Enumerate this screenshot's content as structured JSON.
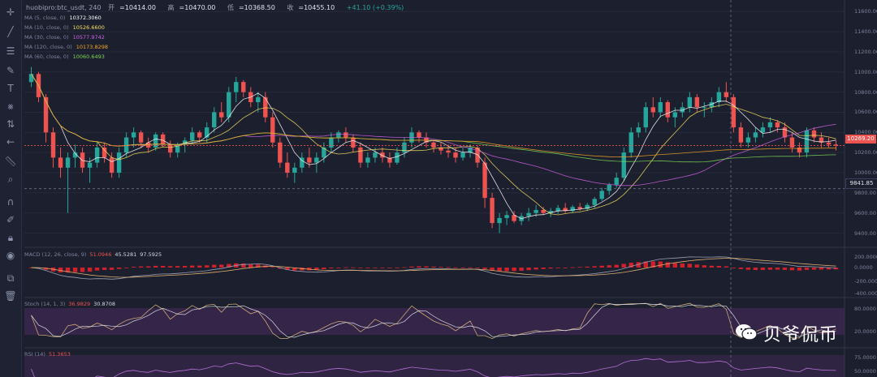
{
  "header": {
    "symbol": "huobipro:btc_usdt, 240",
    "open_label": "开",
    "open": "=10414.00",
    "high_label": "高",
    "high": "=10470.00",
    "low_label": "低",
    "low": "=10368.50",
    "close_label": "收",
    "close": "=10455.10",
    "change": "+41.10 (+0.39%)"
  },
  "indicators": [
    {
      "label": "MA (5, close, 0)",
      "value": "10372.3060",
      "color": "#ffffff"
    },
    {
      "label": "MA (10, close, 0)",
      "value": "10526.6600",
      "color": "#f6e05e"
    },
    {
      "label": "MA (30, close, 0)",
      "value": "10577.9742",
      "color": "#d163e6"
    },
    {
      "label": "MA (120, close, 0)",
      "value": "10173.8298",
      "color": "#f5a623"
    },
    {
      "label": "MA (60, close, 0)",
      "value": "10060.6493",
      "color": "#7ed957"
    }
  ],
  "price_axis": [
    "11600.00",
    "11400.00",
    "11200.00",
    "11000.00",
    "10800.00",
    "10600.00",
    "10400.00",
    "10200.00",
    "10000.00",
    "9800.00",
    "9600.00",
    "9400.00"
  ],
  "current_price": "10269.20",
  "crosshair_price": "9841.85",
  "macd": {
    "label": "MACD (12, 26, close, 9)",
    "v1": "51.0946",
    "v2": "45.5281",
    "v3": "97.5925",
    "axis": [
      "200.0000",
      "0.0000",
      "-200.0000",
      "-400.0000"
    ]
  },
  "stoch": {
    "label": "Stoch (14, 1, 3)",
    "v1": "36.9829",
    "v2": "30.8708",
    "axis": [
      "80.0000",
      "20.0000"
    ]
  },
  "rsi": {
    "label": "RSI (14)",
    "v1": "51.3653",
    "axis": [
      "75.0000",
      "50.0000"
    ]
  },
  "watermark": "贝爷侃币",
  "colors": {
    "up": "#26a69a",
    "down": "#ef5350",
    "bg": "#1c1f2e"
  },
  "chart_data": {
    "type": "candlestick",
    "title": "huobipro:btc_usdt, 240",
    "ylim": [
      9300,
      11650
    ],
    "candles": [
      [
        10900,
        11050,
        10850,
        10980
      ],
      [
        10980,
        11000,
        10700,
        10750
      ],
      [
        10750,
        10780,
        10300,
        10400
      ],
      [
        10400,
        10450,
        10050,
        10150
      ],
      [
        10150,
        10250,
        9950,
        10050
      ],
      [
        10050,
        10200,
        9600,
        10150
      ],
      [
        10150,
        10280,
        10050,
        10200
      ],
      [
        10200,
        10250,
        10000,
        10050
      ],
      [
        10050,
        10150,
        9900,
        10100
      ],
      [
        10100,
        10300,
        10050,
        10250
      ],
      [
        10250,
        10300,
        10100,
        10150
      ],
      [
        10150,
        10200,
        9950,
        10000
      ],
      [
        10000,
        10250,
        9950,
        10200
      ],
      [
        10200,
        10400,
        10150,
        10350
      ],
      [
        10350,
        10450,
        10250,
        10400
      ],
      [
        10400,
        10420,
        10250,
        10300
      ],
      [
        10300,
        10350,
        10200,
        10250
      ],
      [
        10250,
        10400,
        10220,
        10380
      ],
      [
        10380,
        10400,
        10250,
        10280
      ],
      [
        10280,
        10320,
        10150,
        10200
      ],
      [
        10200,
        10300,
        10150,
        10280
      ],
      [
        10280,
        10350,
        10200,
        10320
      ],
      [
        10320,
        10450,
        10280,
        10400
      ],
      [
        10400,
        10420,
        10300,
        10350
      ],
      [
        10350,
        10500,
        10300,
        10450
      ],
      [
        10450,
        10650,
        10400,
        10600
      ],
      [
        10600,
        10700,
        10500,
        10550
      ],
      [
        10550,
        10850,
        10500,
        10800
      ],
      [
        10800,
        10950,
        10700,
        10900
      ],
      [
        10900,
        10920,
        10750,
        10800
      ],
      [
        10800,
        10850,
        10650,
        10700
      ],
      [
        10700,
        10800,
        10600,
        10750
      ],
      [
        10750,
        10800,
        10500,
        10550
      ],
      [
        10550,
        10600,
        10250,
        10300
      ],
      [
        10300,
        10350,
        10050,
        10100
      ],
      [
        10100,
        10200,
        9950,
        10000
      ],
      [
        10000,
        10100,
        9900,
        10050
      ],
      [
        10050,
        10200,
        10000,
        10150
      ],
      [
        10150,
        10250,
        10050,
        10100
      ],
      [
        10100,
        10200,
        10000,
        10150
      ],
      [
        10150,
        10300,
        10100,
        10250
      ],
      [
        10250,
        10400,
        10200,
        10350
      ],
      [
        10350,
        10420,
        10300,
        10400
      ],
      [
        10400,
        10450,
        10300,
        10350
      ],
      [
        10350,
        10380,
        10200,
        10250
      ],
      [
        10250,
        10300,
        10050,
        10100
      ],
      [
        10100,
        10200,
        10050,
        10150
      ],
      [
        10150,
        10250,
        10100,
        10200
      ],
      [
        10200,
        10250,
        10100,
        10150
      ],
      [
        10150,
        10200,
        10050,
        10100
      ],
      [
        10100,
        10250,
        10080,
        10200
      ],
      [
        10200,
        10350,
        10150,
        10300
      ],
      [
        10300,
        10450,
        10250,
        10400
      ],
      [
        10400,
        10420,
        10300,
        10350
      ],
      [
        10350,
        10400,
        10250,
        10300
      ],
      [
        10300,
        10320,
        10200,
        10250
      ],
      [
        10250,
        10300,
        10180,
        10220
      ],
      [
        10220,
        10280,
        10150,
        10200
      ],
      [
        10200,
        10250,
        10100,
        10150
      ],
      [
        10150,
        10250,
        10120,
        10200
      ],
      [
        10200,
        10280,
        10150,
        10250
      ],
      [
        10250,
        10270,
        10050,
        10100
      ],
      [
        10100,
        10150,
        9650,
        9750
      ],
      [
        9750,
        9800,
        9450,
        9500
      ],
      [
        9500,
        9600,
        9400,
        9550
      ],
      [
        9550,
        9620,
        9480,
        9580
      ],
      [
        9580,
        9620,
        9500,
        9520
      ],
      [
        9520,
        9600,
        9480,
        9570
      ],
      [
        9570,
        9650,
        9520,
        9600
      ],
      [
        9600,
        9680,
        9560,
        9630
      ],
      [
        9630,
        9660,
        9580,
        9600
      ],
      [
        9600,
        9650,
        9560,
        9620
      ],
      [
        9620,
        9680,
        9590,
        9650
      ],
      [
        9650,
        9700,
        9600,
        9620
      ],
      [
        9620,
        9680,
        9600,
        9660
      ],
      [
        9660,
        9700,
        9620,
        9640
      ],
      [
        9640,
        9700,
        9620,
        9680
      ],
      [
        9680,
        9760,
        9650,
        9740
      ],
      [
        9740,
        9850,
        9720,
        9820
      ],
      [
        9820,
        9900,
        9780,
        9880
      ],
      [
        9880,
        10000,
        9850,
        9950
      ],
      [
        9950,
        10250,
        9920,
        10200
      ],
      [
        10200,
        10450,
        10150,
        10400
      ],
      [
        10400,
        10500,
        10350,
        10450
      ],
      [
        10450,
        10700,
        10400,
        10650
      ],
      [
        10650,
        10750,
        10550,
        10600
      ],
      [
        10600,
        10750,
        10550,
        10700
      ],
      [
        10700,
        10720,
        10500,
        10550
      ],
      [
        10550,
        10650,
        10450,
        10600
      ],
      [
        10600,
        10700,
        10550,
        10650
      ],
      [
        10650,
        10800,
        10600,
        10750
      ],
      [
        10750,
        10780,
        10600,
        10650
      ],
      [
        10650,
        10700,
        10550,
        10650
      ],
      [
        10650,
        10750,
        10600,
        10700
      ],
      [
        10700,
        10850,
        10650,
        10800
      ],
      [
        10800,
        10900,
        10700,
        10750
      ],
      [
        10750,
        10780,
        10400,
        10450
      ],
      [
        10450,
        10500,
        10250,
        10300
      ],
      [
        10300,
        10400,
        10250,
        10350
      ],
      [
        10350,
        10450,
        10300,
        10400
      ],
      [
        10400,
        10500,
        10350,
        10450
      ],
      [
        10450,
        10550,
        10400,
        10500
      ],
      [
        10500,
        10520,
        10400,
        10450
      ],
      [
        10450,
        10500,
        10300,
        10350
      ],
      [
        10350,
        10400,
        10200,
        10250
      ],
      [
        10250,
        10300,
        10150,
        10200
      ],
      [
        10200,
        10450,
        10150,
        10420
      ],
      [
        10420,
        10450,
        10300,
        10350
      ],
      [
        10350,
        10400,
        10250,
        10300
      ],
      [
        10300,
        10350,
        10250,
        10280
      ],
      [
        10280,
        10320,
        10220,
        10269
      ]
    ]
  }
}
